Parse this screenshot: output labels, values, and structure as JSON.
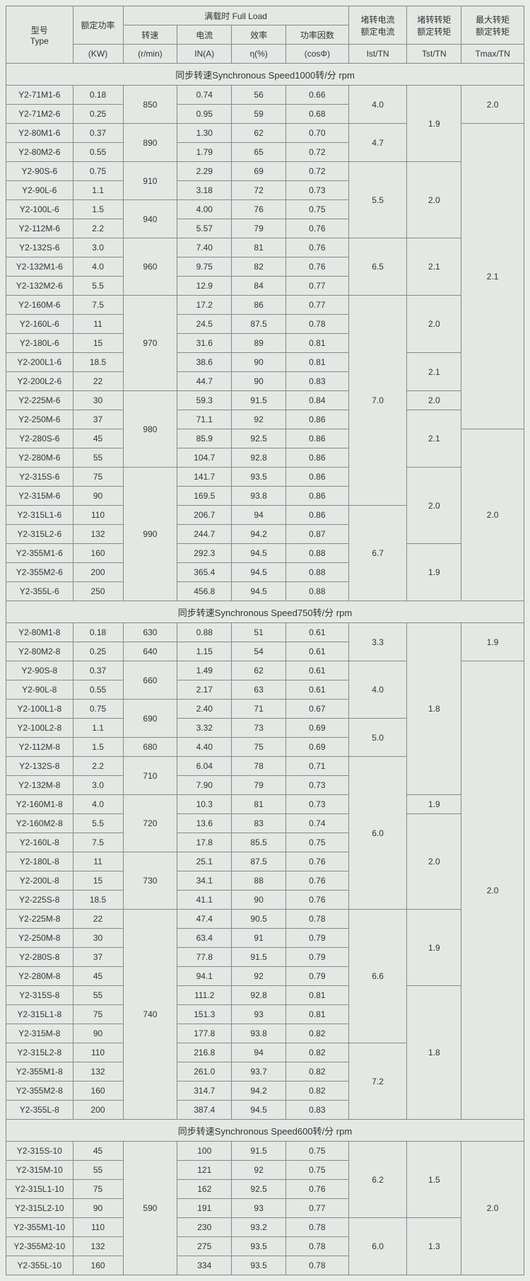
{
  "headers": {
    "type_line1": "型号",
    "type_line2": "Type",
    "power": "额定功率",
    "fullload": "满载时 Full Load",
    "speed": "转速",
    "current": "电流",
    "efficiency": "效率",
    "pf": "功率因数",
    "lr_current_1": "堵转电流",
    "lr_current_2": "额定电流",
    "lr_torque_1": "堵转转矩",
    "lr_torque_2": "额定转矩",
    "max_torque_1": "最大转矩",
    "max_torque_2": "额定转矩",
    "kw": "(KW)",
    "rmin": "(r/min)",
    "ina": "IN(A)",
    "eta": "η(%)",
    "cosphi": "(cosΦ)",
    "ist": "Ist/TN",
    "tst": "Tst/TN",
    "tmax": "Tmax/TN"
  },
  "section1": "同步转速Synchronous Speed1000转/分 rpm",
  "section2": "同步转速Synchronous Speed750转/分 rpm",
  "section3": "同步转速Synchronous Speed600转/分 rpm",
  "s1": {
    "r": [
      {
        "t": "Y2-71M1-6",
        "kw": "0.18",
        "in": "0.74",
        "e": "56",
        "c": "0.66"
      },
      {
        "t": "Y2-71M2-6",
        "kw": "0.25",
        "in": "0.95",
        "e": "59",
        "c": "0.68"
      },
      {
        "t": "Y2-80M1-6",
        "kw": "0.37",
        "in": "1.30",
        "e": "62",
        "c": "0.70"
      },
      {
        "t": "Y2-80M2-6",
        "kw": "0.55",
        "in": "1.79",
        "e": "65",
        "c": "0.72"
      },
      {
        "t": "Y2-90S-6",
        "kw": "0.75",
        "in": "2.29",
        "e": "69",
        "c": "0.72"
      },
      {
        "t": "Y2-90L-6",
        "kw": "1.1",
        "in": "3.18",
        "e": "72",
        "c": "0.73"
      },
      {
        "t": "Y2-100L-6",
        "kw": "1.5",
        "in": "4.00",
        "e": "76",
        "c": "0.75"
      },
      {
        "t": "Y2-112M-6",
        "kw": "2.2",
        "in": "5.57",
        "e": "79",
        "c": "0.76"
      },
      {
        "t": "Y2-132S-6",
        "kw": "3.0",
        "in": "7.40",
        "e": "81",
        "c": "0.76"
      },
      {
        "t": "Y2-132M1-6",
        "kw": "4.0",
        "in": "9.75",
        "e": "82",
        "c": "0.76"
      },
      {
        "t": "Y2-132M2-6",
        "kw": "5.5",
        "in": "12.9",
        "e": "84",
        "c": "0.77"
      },
      {
        "t": "Y2-160M-6",
        "kw": "7.5",
        "in": "17.2",
        "e": "86",
        "c": "0.77"
      },
      {
        "t": "Y2-160L-6",
        "kw": "11",
        "in": "24.5",
        "e": "87.5",
        "c": "0.78"
      },
      {
        "t": "Y2-180L-6",
        "kw": "15",
        "in": "31.6",
        "e": "89",
        "c": "0.81"
      },
      {
        "t": "Y2-200L1-6",
        "kw": "18.5",
        "in": "38.6",
        "e": "90",
        "c": "0.81"
      },
      {
        "t": "Y2-200L2-6",
        "kw": "22",
        "in": "44.7",
        "e": "90",
        "c": "0.83"
      },
      {
        "t": "Y2-225M-6",
        "kw": "30",
        "in": "59.3",
        "e": "91.5",
        "c": "0.84"
      },
      {
        "t": "Y2-250M-6",
        "kw": "37",
        "in": "71.1",
        "e": "92",
        "c": "0.86"
      },
      {
        "t": "Y2-280S-6",
        "kw": "45",
        "in": "85.9",
        "e": "92.5",
        "c": "0.86"
      },
      {
        "t": "Y2-280M-6",
        "kw": "55",
        "in": "104.7",
        "e": "92.8",
        "c": "0.86"
      },
      {
        "t": "Y2-315S-6",
        "kw": "75",
        "in": "141.7",
        "e": "93.5",
        "c": "0.86"
      },
      {
        "t": "Y2-315M-6",
        "kw": "90",
        "in": "169.5",
        "e": "93.8",
        "c": "0.86"
      },
      {
        "t": "Y2-315L1-6",
        "kw": "110",
        "in": "206.7",
        "e": "94",
        "c": "0.86"
      },
      {
        "t": "Y2-315L2-6",
        "kw": "132",
        "in": "244.7",
        "e": "94.2",
        "c": "0.87"
      },
      {
        "t": "Y2-355M1-6",
        "kw": "160",
        "in": "292.3",
        "e": "94.5",
        "c": "0.88"
      },
      {
        "t": "Y2-355M2-6",
        "kw": "200",
        "in": "365.4",
        "e": "94.5",
        "c": "0.88"
      },
      {
        "t": "Y2-355L-6",
        "kw": "250",
        "in": "456.8",
        "e": "94.5",
        "c": "0.88"
      }
    ],
    "rpm850": "850",
    "rpm890": "890",
    "rpm910": "910",
    "rpm940": "940",
    "rpm960": "960",
    "rpm970": "970",
    "rpm980": "980",
    "rpm990": "990",
    "ist40": "4.0",
    "ist47": "4.7",
    "ist55": "5.5",
    "ist65": "6.5",
    "ist70": "7.0",
    "ist67": "6.7",
    "tst19": "1.9",
    "tst20": "2.0",
    "tst21": "2.1",
    "tmax20": "2.0",
    "tmax21": "2.1"
  },
  "s2": {
    "r": [
      {
        "t": "Y2-80M1-8",
        "kw": "0.18",
        "rpm": "630",
        "in": "0.88",
        "e": "51",
        "c": "0.61"
      },
      {
        "t": "Y2-80M2-8",
        "kw": "0.25",
        "rpm": "640",
        "in": "1.15",
        "e": "54",
        "c": "0.61"
      },
      {
        "t": "Y2-90S-8",
        "kw": "0.37",
        "in": "1.49",
        "e": "62",
        "c": "0.61"
      },
      {
        "t": "Y2-90L-8",
        "kw": "0.55",
        "in": "2.17",
        "e": "63",
        "c": "0.61"
      },
      {
        "t": "Y2-100L1-8",
        "kw": "0.75",
        "in": "2.40",
        "e": "71",
        "c": "0.67"
      },
      {
        "t": "Y2-100L2-8",
        "kw": "1.1",
        "in": "3.32",
        "e": "73",
        "c": "0.69"
      },
      {
        "t": "Y2-112M-8",
        "kw": "1.5",
        "rpm": "680",
        "in": "4.40",
        "e": "75",
        "c": "0.69"
      },
      {
        "t": "Y2-132S-8",
        "kw": "2.2",
        "in": "6.04",
        "e": "78",
        "c": "0.71"
      },
      {
        "t": "Y2-132M-8",
        "kw": "3.0",
        "in": "7.90",
        "e": "79",
        "c": "0.73"
      },
      {
        "t": "Y2-160M1-8",
        "kw": "4.0",
        "in": "10.3",
        "e": "81",
        "c": "0.73"
      },
      {
        "t": "Y2-160M2-8",
        "kw": "5.5",
        "in": "13.6",
        "e": "83",
        "c": "0.74"
      },
      {
        "t": "Y2-160L-8",
        "kw": "7.5",
        "in": "17.8",
        "e": "85.5",
        "c": "0.75"
      },
      {
        "t": "Y2-180L-8",
        "kw": "11",
        "in": "25.1",
        "e": "87.5",
        "c": "0.76"
      },
      {
        "t": "Y2-200L-8",
        "kw": "15",
        "in": "34.1",
        "e": "88",
        "c": "0.76"
      },
      {
        "t": "Y2-225S-8",
        "kw": "18.5",
        "in": "41.1",
        "e": "90",
        "c": "0.76"
      },
      {
        "t": "Y2-225M-8",
        "kw": "22",
        "in": "47.4",
        "e": "90.5",
        "c": "0.78"
      },
      {
        "t": "Y2-250M-8",
        "kw": "30",
        "in": "63.4",
        "e": "91",
        "c": "0.79"
      },
      {
        "t": "Y2-280S-8",
        "kw": "37",
        "in": "77.8",
        "e": "91.5",
        "c": "0.79"
      },
      {
        "t": "Y2-280M-8",
        "kw": "45",
        "in": "94.1",
        "e": "92",
        "c": "0.79"
      },
      {
        "t": "Y2-315S-8",
        "kw": "55",
        "in": "111.2",
        "e": "92.8",
        "c": "0.81"
      },
      {
        "t": "Y2-315L1-8",
        "kw": "75",
        "in": "151.3",
        "e": "93",
        "c": "0.81"
      },
      {
        "t": "Y2-315M-8",
        "kw": "90",
        "in": "177.8",
        "e": "93.8",
        "c": "0.82"
      },
      {
        "t": "Y2-315L2-8",
        "kw": "110",
        "in": "216.8",
        "e": "94",
        "c": "0.82"
      },
      {
        "t": "Y2-355M1-8",
        "kw": "132",
        "in": "261.0",
        "e": "93.7",
        "c": "0.82"
      },
      {
        "t": "Y2-355M2-8",
        "kw": "160",
        "in": "314.7",
        "e": "94.2",
        "c": "0.82"
      },
      {
        "t": "Y2-355L-8",
        "kw": "200",
        "in": "387.4",
        "e": "94.5",
        "c": "0.83"
      }
    ],
    "rpm660": "660",
    "rpm690": "690",
    "rpm710": "710",
    "rpm720": "720",
    "rpm730": "730",
    "rpm740": "740",
    "ist33": "3.3",
    "ist40": "4.0",
    "ist50": "5.0",
    "ist60": "6.0",
    "ist66": "6.6",
    "ist72": "7.2",
    "tst18": "1.8",
    "tst19": "1.9",
    "tst20": "2.0",
    "tmax19": "1.9",
    "tmax20": "2.0"
  },
  "s3": {
    "r": [
      {
        "t": "Y2-315S-10",
        "kw": "45",
        "in": "100",
        "e": "91.5",
        "c": "0.75"
      },
      {
        "t": "Y2-315M-10",
        "kw": "55",
        "in": "121",
        "e": "92",
        "c": "0.75"
      },
      {
        "t": "Y2-315L1-10",
        "kw": "75",
        "in": "162",
        "e": "92.5",
        "c": "0.76"
      },
      {
        "t": "Y2-315L2-10",
        "kw": "90",
        "in": "191",
        "e": "93",
        "c": "0.77"
      },
      {
        "t": "Y2-355M1-10",
        "kw": "110",
        "in": "230",
        "e": "93.2",
        "c": "0.78"
      },
      {
        "t": "Y2-355M2-10",
        "kw": "132",
        "in": "275",
        "e": "93.5",
        "c": "0.78"
      },
      {
        "t": "Y2-355L-10",
        "kw": "160",
        "in": "334",
        "e": "93.5",
        "c": "0.78"
      }
    ],
    "rpm590": "590",
    "ist62": "6.2",
    "ist60": "6.0",
    "tst15": "1.5",
    "tst13": "1.3",
    "tmax20": "2.0"
  }
}
